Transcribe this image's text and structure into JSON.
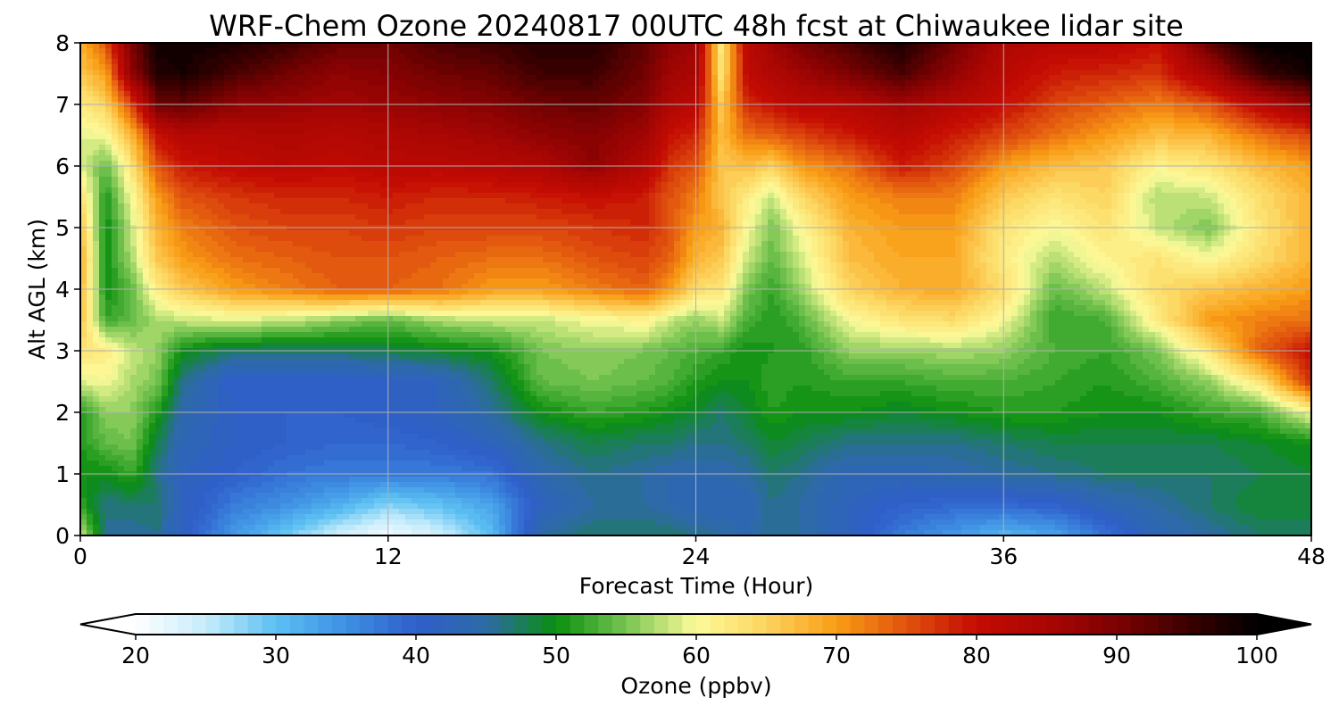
{
  "chart_data": {
    "type": "heatmap",
    "title": "WRF-Chem Ozone  20240817 00UTC 48h fcst at Chiwaukee lidar site",
    "xlabel": "Forecast Time (Hour)",
    "ylabel": "Alt AGL (km)",
    "xlim": [
      0,
      48
    ],
    "ylim": [
      0,
      8
    ],
    "x_ticks": [
      "0",
      "12",
      "24",
      "36",
      "48"
    ],
    "y_ticks": [
      "0",
      "1",
      "2",
      "3",
      "4",
      "5",
      "6",
      "7",
      "8"
    ],
    "grid": true,
    "colorbar": {
      "label": "Ozone  (ppbv)",
      "min": 20,
      "max": 100,
      "ticks": [
        "20",
        "30",
        "40",
        "50",
        "60",
        "70",
        "80",
        "90",
        "100"
      ],
      "extend": "both",
      "stops": [
        {
          "value": 20,
          "color": "#ffffff"
        },
        {
          "value": 25,
          "color": "#c6ecfb"
        },
        {
          "value": 30,
          "color": "#5bc0f2"
        },
        {
          "value": 35,
          "color": "#3f8fe3"
        },
        {
          "value": 40,
          "color": "#2f5fcb"
        },
        {
          "value": 45,
          "color": "#2e6aa6"
        },
        {
          "value": 50,
          "color": "#0a8f0f"
        },
        {
          "value": 55,
          "color": "#78c452"
        },
        {
          "value": 60,
          "color": "#fcfb9a"
        },
        {
          "value": 65,
          "color": "#fcd45e"
        },
        {
          "value": 70,
          "color": "#f99c15"
        },
        {
          "value": 75,
          "color": "#e0520e"
        },
        {
          "value": 80,
          "color": "#c40b03"
        },
        {
          "value": 85,
          "color": "#a90603"
        },
        {
          "value": 90,
          "color": "#7d0202"
        },
        {
          "value": 95,
          "color": "#3d0000"
        },
        {
          "value": 100,
          "color": "#000000"
        }
      ]
    },
    "times_h": [
      0,
      1,
      2,
      3,
      4,
      6,
      8,
      10,
      12,
      14,
      16,
      18,
      20,
      22,
      23,
      24,
      25,
      26,
      27,
      28,
      30,
      32,
      34,
      36,
      38,
      40,
      42,
      44,
      46,
      48
    ],
    "altitudes_km": [
      0,
      0.5,
      1,
      1.5,
      2,
      2.5,
      3,
      3.5,
      4,
      4.5,
      5,
      5.5,
      6,
      6.5,
      7,
      7.5,
      8
    ],
    "ozone_ppbv": [
      [
        58,
        46,
        45,
        46,
        41,
        34,
        29,
        24,
        21,
        24,
        30,
        45,
        47,
        47,
        47,
        46,
        45,
        44,
        46,
        45,
        42,
        37,
        34,
        31,
        33,
        38,
        43,
        45,
        47,
        48
      ],
      [
        52,
        46,
        47,
        47,
        42,
        37,
        35,
        32,
        28,
        30,
        33,
        42,
        45,
        45,
        44,
        43,
        43,
        43,
        46,
        45,
        42,
        40,
        39,
        39,
        40,
        43,
        45,
        47,
        49,
        48
      ],
      [
        50,
        50,
        52,
        46,
        42,
        40,
        38,
        37,
        37,
        37,
        38,
        44,
        46,
        45,
        44,
        44,
        44,
        45,
        47,
        46,
        43,
        43,
        44,
        45,
        46,
        47,
        47,
        47,
        48,
        49
      ],
      [
        51,
        54,
        55,
        48,
        43,
        41,
        40,
        39,
        39,
        40,
        42,
        46,
        48,
        47,
        47,
        46,
        46,
        47,
        49,
        48,
        46,
        46,
        46,
        47,
        48,
        48,
        48,
        48,
        49,
        50
      ],
      [
        51,
        56,
        56,
        51,
        44,
        41,
        40,
        40,
        41,
        42,
        45,
        50,
        52,
        51,
        50,
        49,
        47,
        49,
        51,
        50,
        50,
        49,
        50,
        51,
        51,
        50,
        50,
        52,
        53,
        60
      ],
      [
        59,
        60,
        57,
        55,
        46,
        40,
        40,
        40,
        41,
        42,
        47,
        54,
        55,
        54,
        53,
        51,
        50,
        50,
        52,
        51,
        52,
        52,
        53,
        53,
        52,
        51,
        53,
        56,
        63,
        78
      ],
      [
        63,
        62,
        58,
        56,
        50,
        47,
        47,
        47,
        48,
        49,
        50,
        55,
        56,
        55,
        54,
        53,
        52,
        50,
        51,
        51,
        56,
        56,
        57,
        56,
        53,
        52,
        55,
        63,
        74,
        80
      ],
      [
        67,
        52,
        54,
        57,
        58,
        59,
        58,
        56,
        54,
        57,
        58,
        58,
        60,
        61,
        58,
        56,
        58,
        53,
        51,
        53,
        60,
        63,
        64,
        60,
        52,
        53,
        62,
        70,
        72,
        73
      ],
      [
        68,
        50,
        54,
        62,
        66,
        70,
        72,
        74,
        74,
        73,
        70,
        70,
        72,
        74,
        70,
        64,
        63,
        55,
        52,
        56,
        65,
        68,
        69,
        64,
        54,
        58,
        64,
        66,
        68,
        70
      ],
      [
        69,
        50,
        57,
        66,
        70,
        73,
        74,
        75,
        75,
        74,
        73,
        73,
        75,
        76,
        74,
        68,
        66,
        58,
        54,
        58,
        67,
        69,
        69,
        62,
        57,
        61,
        63,
        60,
        64,
        68
      ],
      [
        67,
        50,
        58,
        68,
        72,
        75,
        76,
        76,
        77,
        76,
        76,
        76,
        77,
        78,
        75,
        70,
        68,
        60,
        55,
        60,
        68,
        70,
        70,
        63,
        60,
        63,
        58,
        55,
        63,
        68
      ],
      [
        64,
        51,
        60,
        70,
        75,
        77,
        78,
        78,
        79,
        78,
        78,
        79,
        80,
        79,
        75,
        72,
        66,
        62,
        58,
        64,
        70,
        72,
        72,
        66,
        63,
        65,
        57,
        58,
        64,
        68
      ],
      [
        59,
        54,
        63,
        75,
        79,
        81,
        82,
        81,
        82,
        82,
        83,
        84,
        88,
        83,
        77,
        75,
        66,
        67,
        65,
        70,
        73,
        79,
        76,
        70,
        67,
        66,
        61,
        63,
        67,
        70
      ],
      [
        59,
        60,
        68,
        80,
        83,
        83,
        84,
        83,
        84,
        85,
        86,
        88,
        89,
        86,
        80,
        78,
        67,
        73,
        74,
        76,
        79,
        82,
        79,
        76,
        73,
        70,
        67,
        68,
        73,
        76
      ],
      [
        62,
        65,
        76,
        91,
        92,
        88,
        87,
        86,
        87,
        88,
        89,
        91,
        92,
        89,
        84,
        82,
        66,
        78,
        80,
        82,
        83,
        86,
        83,
        80,
        76,
        74,
        72,
        75,
        82,
        88
      ],
      [
        66,
        70,
        88,
        97,
        98,
        94,
        91,
        88,
        89,
        91,
        92,
        95,
        95,
        91,
        86,
        85,
        63,
        81,
        84,
        86,
        90,
        94,
        88,
        82,
        79,
        78,
        77,
        85,
        95,
        99
      ],
      [
        68,
        75,
        90,
        99,
        99,
        98,
        95,
        92,
        91,
        94,
        95,
        97,
        97,
        92,
        88,
        86,
        62,
        82,
        86,
        90,
        94,
        98,
        91,
        84,
        82,
        82,
        80,
        92,
        100,
        100
      ]
    ]
  }
}
